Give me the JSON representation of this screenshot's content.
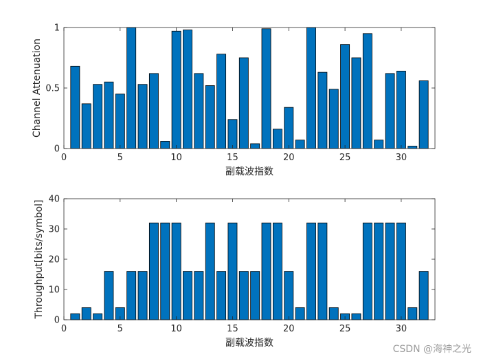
{
  "chart_data": [
    {
      "type": "bar",
      "x": [
        1,
        2,
        3,
        4,
        5,
        6,
        7,
        8,
        9,
        10,
        11,
        12,
        13,
        14,
        15,
        16,
        17,
        18,
        19,
        20,
        21,
        22,
        23,
        24,
        25,
        26,
        27,
        28,
        29,
        30,
        31,
        32
      ],
      "values": [
        0.68,
        0.37,
        0.53,
        0.55,
        0.45,
        1.0,
        0.53,
        0.62,
        0.06,
        0.97,
        0.98,
        0.62,
        0.52,
        0.78,
        0.24,
        0.75,
        0.04,
        0.99,
        0.16,
        0.34,
        0.07,
        1.0,
        0.63,
        0.49,
        0.86,
        0.75,
        0.95,
        0.07,
        0.62,
        0.64,
        0.02,
        0.56
      ],
      "xlabel": "副载波指数",
      "ylabel": "Channel Attenuation",
      "xlim": [
        0,
        33
      ],
      "ylim": [
        0,
        1
      ],
      "xticks": [
        0,
        5,
        10,
        15,
        20,
        25,
        30
      ],
      "yticks": [
        0,
        0.5,
        1
      ],
      "ytick_labels": [
        "0",
        "0.5",
        "1"
      ],
      "bar_color": "#0072BD",
      "grid": false
    },
    {
      "type": "bar",
      "x": [
        1,
        2,
        3,
        4,
        5,
        6,
        7,
        8,
        9,
        10,
        11,
        12,
        13,
        14,
        15,
        16,
        17,
        18,
        19,
        20,
        21,
        22,
        23,
        24,
        25,
        26,
        27,
        28,
        29,
        30,
        31,
        32
      ],
      "values": [
        2,
        4,
        2,
        16,
        4,
        16,
        16,
        32,
        32,
        32,
        16,
        16,
        32,
        16,
        32,
        16,
        16,
        32,
        32,
        16,
        4,
        32,
        32,
        4,
        2,
        2,
        32,
        32,
        32,
        32,
        4,
        16
      ],
      "xlabel": "副载波指数",
      "ylabel": "Throughput[bits/symbol]",
      "xlim": [
        0,
        33
      ],
      "ylim": [
        0,
        40
      ],
      "xticks": [
        0,
        5,
        10,
        15,
        20,
        25,
        30
      ],
      "yticks": [
        0,
        10,
        20,
        30,
        40
      ],
      "ytick_labels": [
        "0",
        "10",
        "20",
        "30",
        "40"
      ],
      "bar_color": "#0072BD",
      "grid": false
    }
  ],
  "watermark": "CSDN @海神之光"
}
